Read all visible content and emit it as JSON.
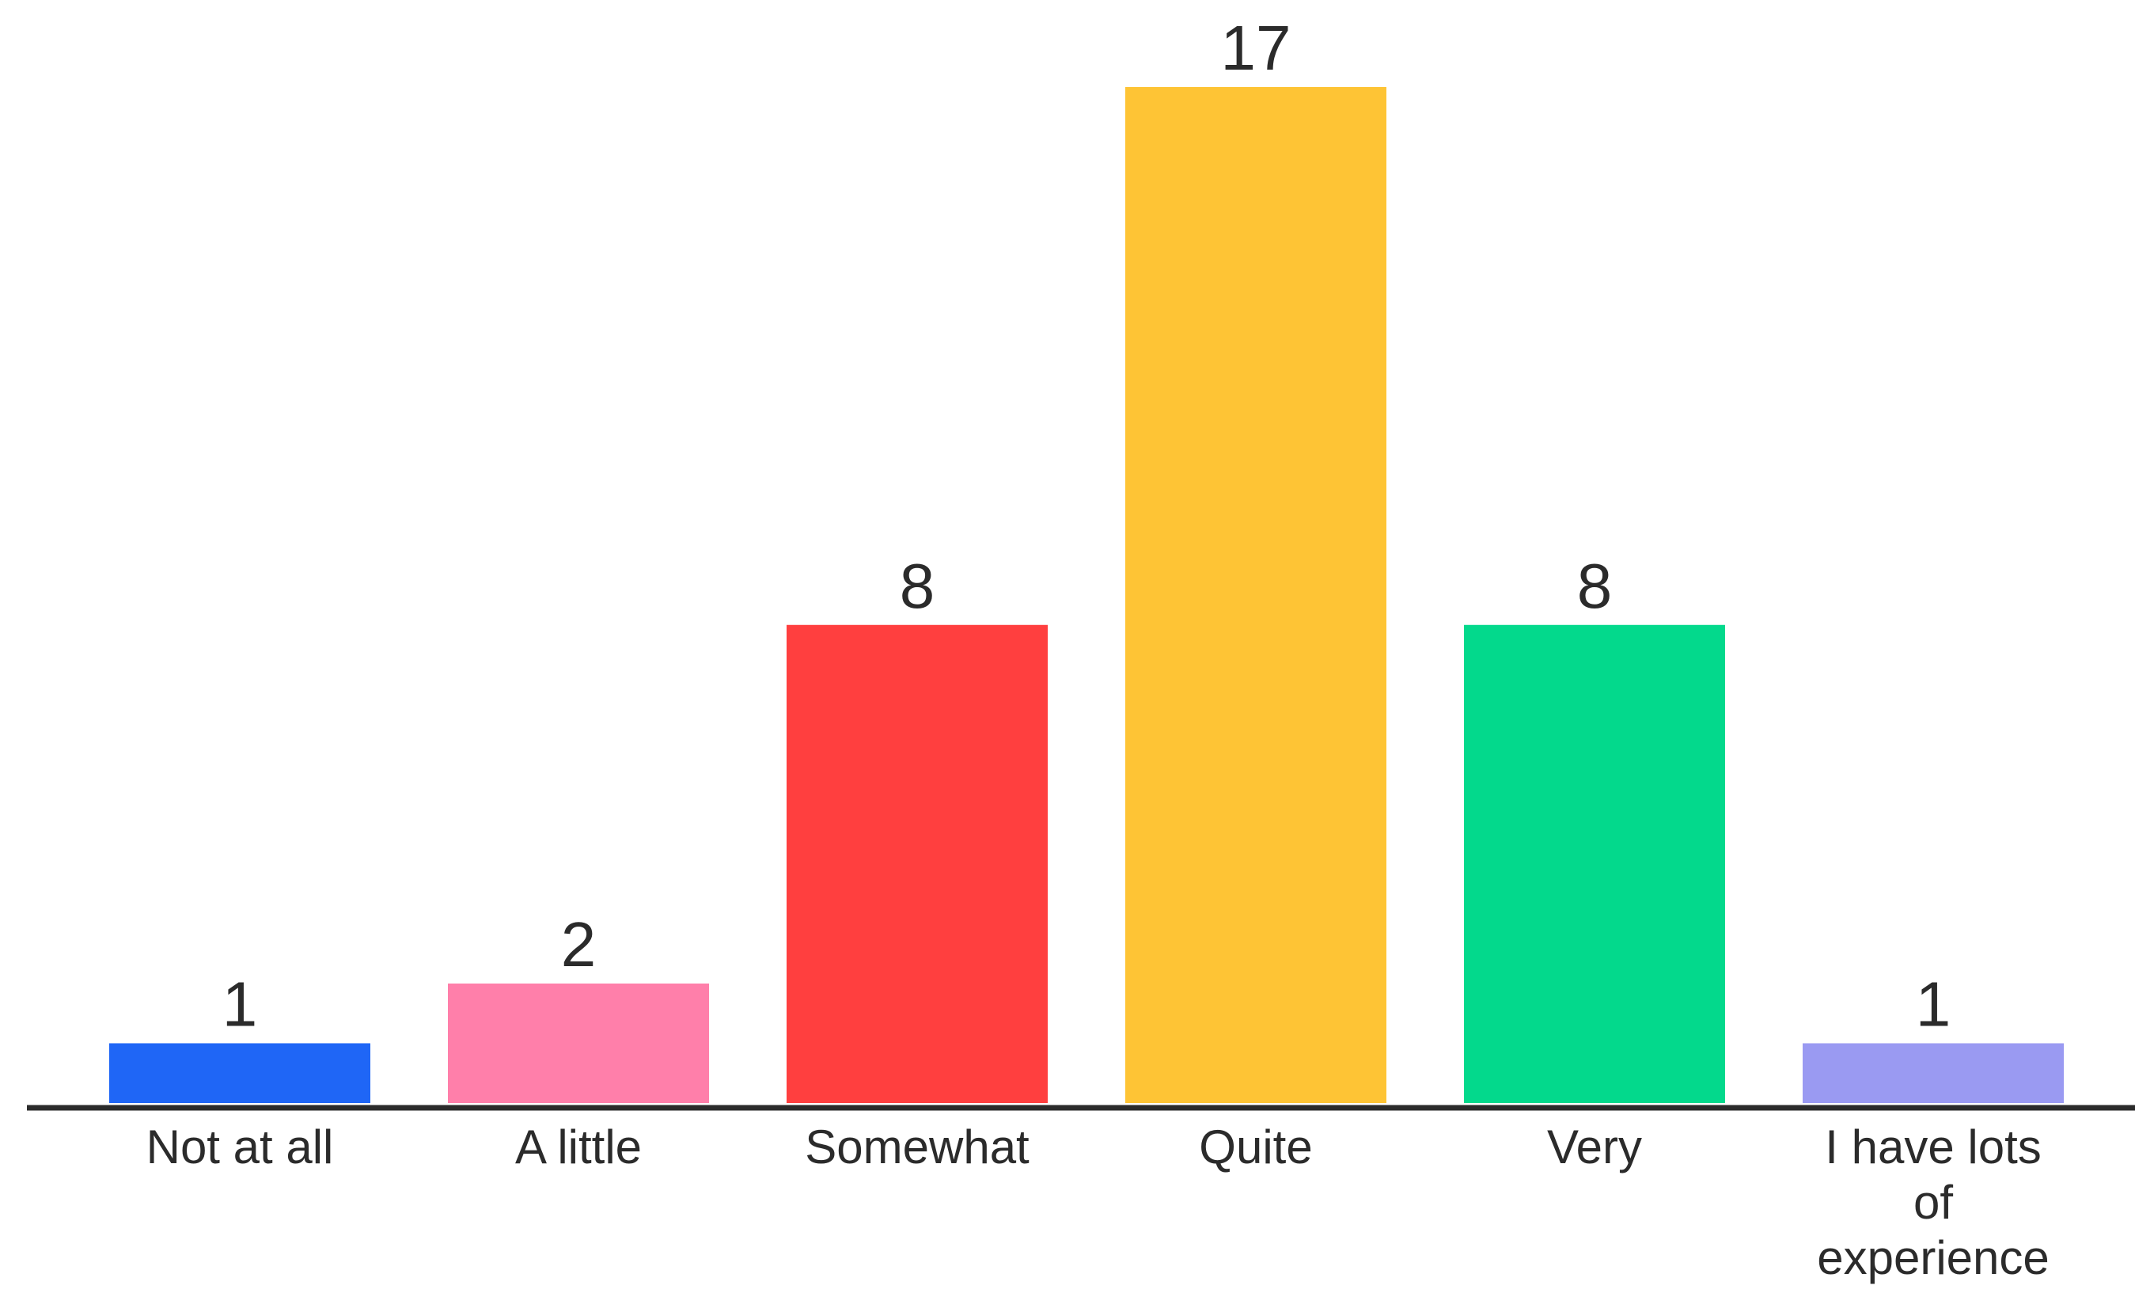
{
  "chart_data": {
    "type": "bar",
    "categories": [
      "Not at all",
      "A little",
      "Somewhat",
      "Quite",
      "Very",
      "I have lots of experience"
    ],
    "category_label_lines": [
      [
        "Not at all"
      ],
      [
        "A little"
      ],
      [
        "Somewhat"
      ],
      [
        "Quite"
      ],
      [
        "Very"
      ],
      [
        "I have lots",
        "of",
        "experience"
      ]
    ],
    "values": [
      1,
      2,
      8,
      17,
      8,
      1
    ],
    "data_labels": [
      "1",
      "2",
      "8",
      "17",
      "8",
      "1"
    ],
    "colors": [
      "#1f66f6",
      "#ff7faa",
      "#ff3f3f",
      "#fec435",
      "#03d98c",
      "#9a9af2"
    ],
    "baseline_color": "#2b2b2b",
    "title": "",
    "xlabel": "",
    "ylabel": "",
    "ylim": [
      0,
      17
    ],
    "grid": false,
    "legend": "none"
  }
}
